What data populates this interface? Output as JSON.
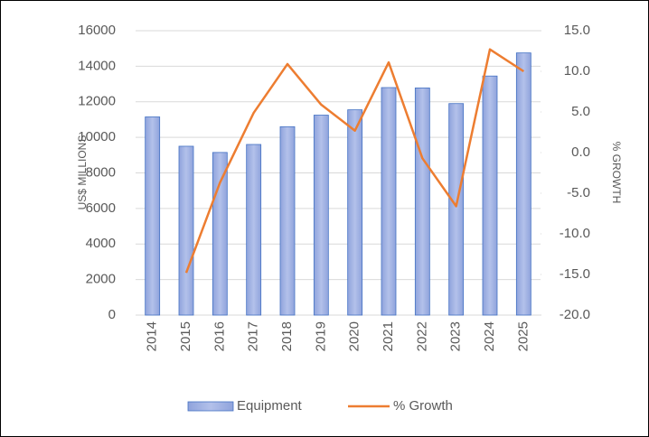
{
  "chart_data": {
    "type": "bar",
    "categories": [
      "2014",
      "2015",
      "2016",
      "2017",
      "2018",
      "2019",
      "2020",
      "2021",
      "2022",
      "2023",
      "2024",
      "2025"
    ],
    "series": [
      {
        "name": "Equipment",
        "type": "bar",
        "color": "#a4b4e2",
        "values": [
          11150,
          9500,
          9150,
          9600,
          10600,
          11250,
          11550,
          12800,
          12780,
          11900,
          13450,
          14750
        ]
      },
      {
        "name": "% Growth",
        "type": "line",
        "color": "#ed7d31",
        "axis": "y2",
        "values": [
          null,
          -14.8,
          -3.7,
          4.9,
          10.9,
          5.9,
          2.7,
          11.1,
          -0.7,
          -6.6,
          12.7,
          10.0
        ]
      }
    ],
    "ylabel": "US$  MILLIONS",
    "y2label": "% GROWTH",
    "ylim": [
      0,
      16000
    ],
    "yticks": [
      0,
      2000,
      4000,
      6000,
      8000,
      10000,
      12000,
      14000,
      16000
    ],
    "y2lim": [
      -20,
      15
    ],
    "y2ticks": [
      {
        "value": -20,
        "label": "-20.0"
      },
      {
        "value": -15,
        "label": "-15.0"
      },
      {
        "value": -10,
        "label": "-10.0"
      },
      {
        "value": -5,
        "label": "-5.0"
      },
      {
        "value": 0,
        "label": "0.0"
      },
      {
        "value": 5,
        "label": "5.0"
      },
      {
        "value": 10,
        "label": "10.0"
      },
      {
        "value": 15,
        "label": "15.0"
      }
    ],
    "grid": true,
    "legend": "bottom"
  }
}
